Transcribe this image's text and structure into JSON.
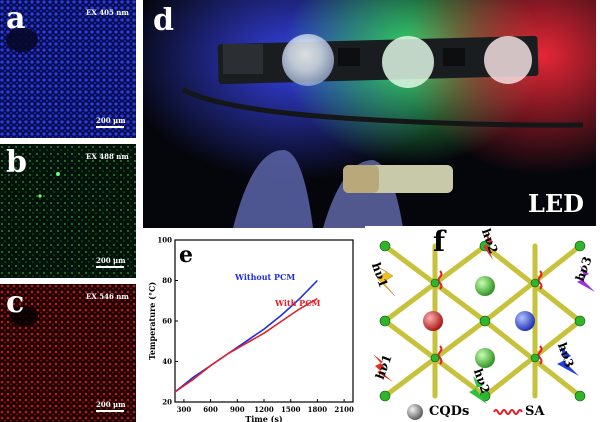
{
  "panels": {
    "a": {
      "label": "a",
      "excitation": "EX 405 nm",
      "scale": "200 μm",
      "color": "#1a2bd6"
    },
    "b": {
      "label": "b",
      "excitation": "EX 488 nm",
      "scale": "200 μm",
      "color": "#22c933"
    },
    "c": {
      "label": "c",
      "excitation": "EX 546 nm",
      "scale": "200 μm",
      "color": "#e01f1f"
    },
    "d": {
      "label": "d",
      "caption": "LED"
    },
    "e": {
      "label": "e"
    },
    "f": {
      "label": "f"
    }
  },
  "chart_data": {
    "type": "line",
    "xlabel": "Time (s)",
    "ylabel": "Temperature (°C)",
    "xlim": [
      200,
      2200
    ],
    "ylim": [
      20,
      100
    ],
    "xticks": [
      300,
      600,
      900,
      1200,
      1500,
      1800,
      2100
    ],
    "yticks": [
      20,
      40,
      60,
      80,
      100
    ],
    "xtick_labels": [
      "300",
      "600",
      "900",
      "1200",
      "1500",
      "1800",
      "2100"
    ],
    "ytick_labels": [
      "20",
      "40",
      "60",
      "80",
      "100"
    ],
    "series": [
      {
        "name": "Without PCM",
        "color": "#1f2ee0",
        "x": [
          200,
          400,
          600,
          800,
          1000,
          1200,
          1400,
          1600,
          1800
        ],
        "y": [
          25,
          32,
          38,
          44,
          50,
          56,
          63,
          71,
          80
        ]
      },
      {
        "name": "With PCM",
        "color": "#e0202a",
        "x": [
          200,
          400,
          600,
          800,
          1000,
          1200,
          1400,
          1600,
          1800
        ],
        "y": [
          25,
          31,
          38,
          44,
          49,
          54,
          60,
          66,
          71
        ]
      }
    ]
  },
  "legend": {
    "without_pcm": "Without PCM",
    "with_pcm": "With PCM",
    "cqds": "CQDs",
    "sa": "SA"
  },
  "photon_labels": [
    "hν1",
    "hν2",
    "hν3",
    "hν1",
    "hν2",
    "hν3"
  ]
}
